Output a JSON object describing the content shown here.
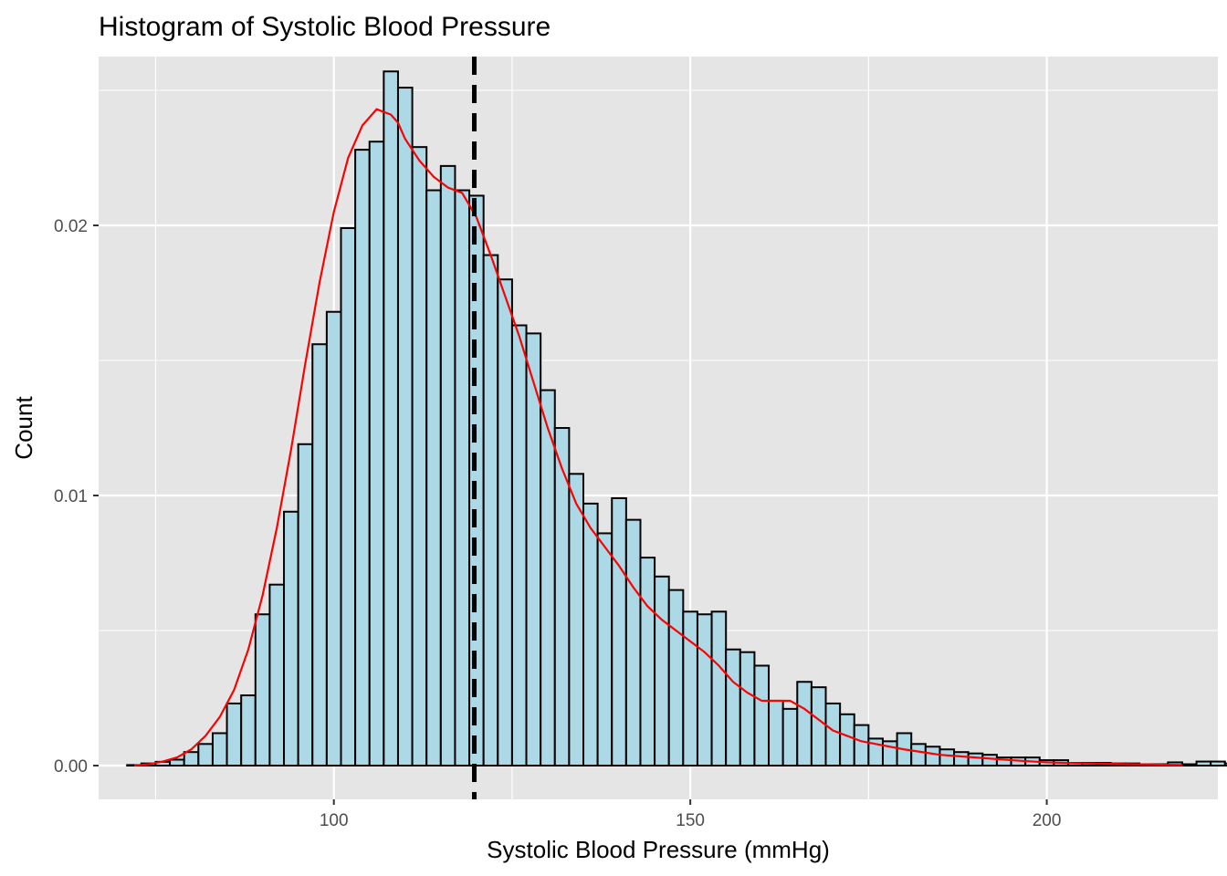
{
  "chart_data": {
    "type": "bar",
    "title": "Histogram of Systolic Blood Pressure",
    "xlabel": "Systolic Blood Pressure (mmHg)",
    "ylabel": "Count",
    "xlim": [
      67,
      224
    ],
    "ylim": [
      -0.00125,
      0.02625
    ],
    "x_ticks": [
      100,
      150,
      200
    ],
    "x_tick_labels": [
      "100",
      "150",
      "200"
    ],
    "y_ticks": [
      0,
      0.01,
      0.02
    ],
    "y_tick_labels": [
      "0.00",
      "0.01",
      "0.02"
    ],
    "grid": true,
    "bin_start": 71,
    "bin_width": 2,
    "bin_values": [
      2e-05,
      8e-05,
      0.00014,
      0.00022,
      0.0005,
      0.0008,
      0.0012,
      0.0023,
      0.0026,
      0.0056,
      0.0067,
      0.0094,
      0.0119,
      0.0156,
      0.0168,
      0.0199,
      0.0228,
      0.0231,
      0.0257,
      0.0251,
      0.0229,
      0.0213,
      0.0222,
      0.0213,
      0.0211,
      0.0189,
      0.018,
      0.0163,
      0.016,
      0.0139,
      0.0125,
      0.0108,
      0.0097,
      0.0086,
      0.0099,
      0.0091,
      0.0077,
      0.007,
      0.0065,
      0.0057,
      0.0056,
      0.0057,
      0.0043,
      0.0042,
      0.0037,
      0.0024,
      0.0021,
      0.0031,
      0.0029,
      0.0023,
      0.0019,
      0.0015,
      0.001,
      0.0009,
      0.0012,
      0.0008,
      0.0007,
      0.0006,
      0.0005,
      0.00045,
      0.0004,
      0.0003,
      0.0003,
      0.0003,
      0.0002,
      0.0002,
      0.0001,
      0.0001,
      0.0001,
      8e-05,
      8e-05,
      5e-05,
      5e-05,
      0.00012,
      5e-05,
      0.00015,
      0.00015,
      8e-05
    ],
    "bar_fill": "#add8e6",
    "bar_stroke": "#000000",
    "density_color": "#ff0000",
    "density": {
      "x": [
        72,
        74,
        76,
        78,
        80,
        82,
        84,
        86,
        88,
        90,
        92,
        94,
        96,
        98,
        100,
        102,
        104,
        106,
        108,
        109,
        110,
        112,
        114,
        116,
        118,
        120,
        122,
        124,
        126,
        128,
        130,
        132,
        134,
        136,
        138,
        140,
        142,
        144,
        146,
        148,
        150,
        152,
        154,
        156,
        158,
        160,
        162,
        164,
        166,
        168,
        170,
        172,
        174,
        176,
        178,
        180,
        185,
        190,
        195,
        200,
        205,
        210,
        215,
        219
      ],
      "y": [
        0.0,
        5e-05,
        0.00015,
        0.0003,
        0.0006,
        0.0011,
        0.0018,
        0.0028,
        0.0043,
        0.0063,
        0.0088,
        0.0117,
        0.0149,
        0.0179,
        0.0205,
        0.0225,
        0.0237,
        0.0243,
        0.0241,
        0.0238,
        0.0232,
        0.0224,
        0.0218,
        0.0214,
        0.0212,
        0.0203,
        0.0189,
        0.0174,
        0.0159,
        0.0142,
        0.0125,
        0.011,
        0.0097,
        0.0088,
        0.0081,
        0.0074,
        0.0066,
        0.0059,
        0.0054,
        0.005,
        0.0046,
        0.0042,
        0.0037,
        0.0031,
        0.0027,
        0.0024,
        0.0024,
        0.0024,
        0.0021,
        0.0017,
        0.0013,
        0.0011,
        0.0009,
        0.0008,
        0.0007,
        0.0006,
        0.0004,
        0.0003,
        0.0002,
        0.00012,
        8e-05,
        6e-05,
        4e-05,
        2e-05
      ]
    },
    "vline_x": 119.7,
    "vline_style": "dashed",
    "vline_color": "#000000"
  }
}
